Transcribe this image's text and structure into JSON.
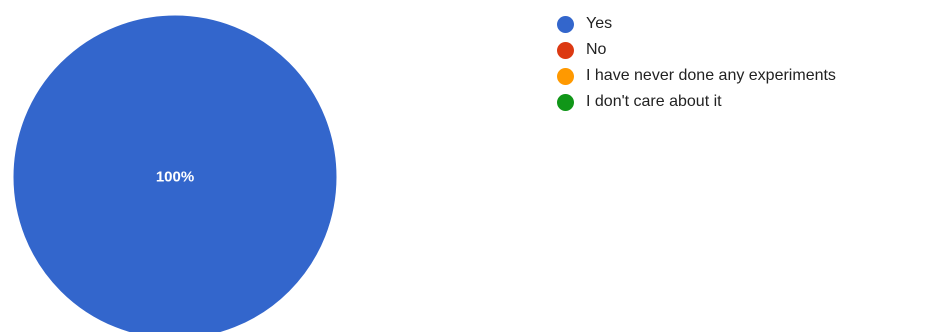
{
  "chart_data": {
    "type": "pie",
    "title": "",
    "slices": [
      {
        "label": "Yes",
        "value": 100,
        "color": "#3366cc"
      },
      {
        "label": "No",
        "value": 0,
        "color": "#dc3912"
      },
      {
        "label": "I have never done any experiments",
        "value": 0,
        "color": "#ff9900"
      },
      {
        "label": "I don't care about it",
        "value": 0,
        "color": "#109618"
      }
    ],
    "data_labels": [
      "100%"
    ],
    "legend_position": "right"
  }
}
